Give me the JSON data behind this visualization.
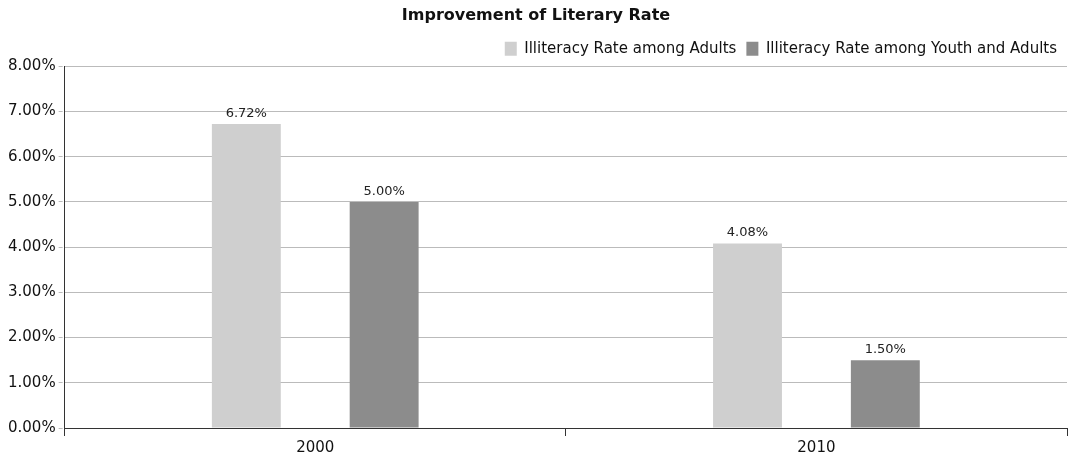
{
  "chart_data": {
    "type": "bar",
    "title": "Improvement of Literary Rate",
    "categories": [
      "2000",
      "2010"
    ],
    "series": [
      {
        "name": "Illiteracy Rate among Adults",
        "color": "#cfcfcf",
        "values": [
          6.72,
          4.08
        ],
        "value_labels": [
          "6.72%",
          "4.08%"
        ]
      },
      {
        "name": "Illiteracy Rate among Youth and Adults",
        "color": "#8c8c8c",
        "values": [
          5.0,
          1.5
        ],
        "value_labels": [
          "5.00%",
          "1.50%"
        ]
      }
    ],
    "ylim": [
      0,
      8
    ],
    "yticks": [
      {
        "value": 0,
        "label": "0.00%"
      },
      {
        "value": 1,
        "label": "1.00%"
      },
      {
        "value": 2,
        "label": "2.00%"
      },
      {
        "value": 3,
        "label": "3.00%"
      },
      {
        "value": 4,
        "label": "4.00%"
      },
      {
        "value": 5,
        "label": "5.00%"
      },
      {
        "value": 6,
        "label": "6.00%"
      },
      {
        "value": 7,
        "label": "7.00%"
      },
      {
        "value": 8,
        "label": "8.00%"
      }
    ],
    "grid": "y",
    "legend": "top right"
  }
}
